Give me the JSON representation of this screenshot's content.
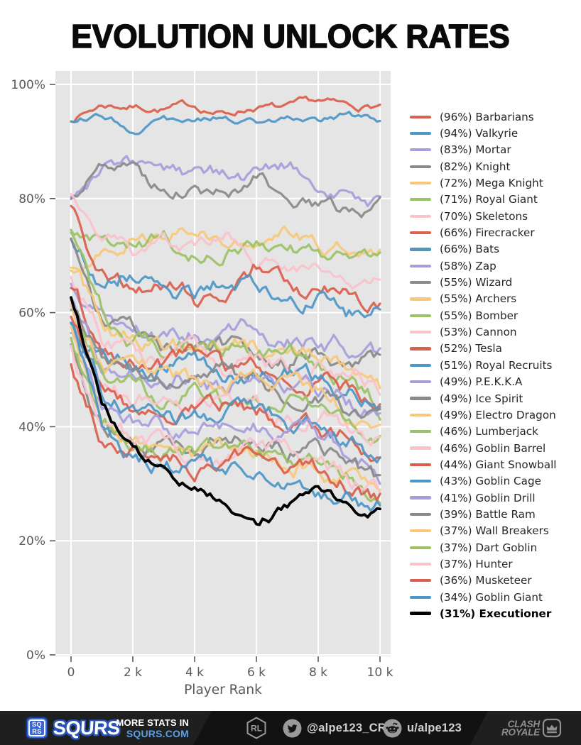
{
  "title": "EVOLUTION UNLOCK RATES",
  "chart_data": {
    "type": "line",
    "title": "EVOLUTION UNLOCK RATES",
    "xlabel": "Player Rank",
    "ylabel": "",
    "x_tick_labels": [
      "0",
      "2 k",
      "4 k",
      "6 k",
      "8 k",
      "10 k"
    ],
    "x_tick_values": [
      0,
      2000,
      4000,
      6000,
      8000,
      10000
    ],
    "y_tick_labels": [
      "0%",
      "20%",
      "40%",
      "60%",
      "80%",
      "100%"
    ],
    "y_tick_values": [
      0,
      20,
      40,
      60,
      80,
      100
    ],
    "xlim": [
      0,
      10000
    ],
    "ylim": [
      0,
      100
    ],
    "grid": "on",
    "plot_bg": "#e5e5e5",
    "grid_color": "#ffffff",
    "tick_color": "#595959",
    "legend_position": "right",
    "legend_format": "({pct}%) {name}",
    "palette": {
      "red": "#dc5f4e",
      "blue": "#4d97c7",
      "purple": "#a69edb",
      "gray": "#8a8a8a",
      "yellow": "#f8c878",
      "green": "#9cc266",
      "pink": "#fac3cc",
      "black": "#000000"
    },
    "x_control_points": [
      0,
      1000,
      2000,
      3000,
      4000,
      5000,
      6000,
      7000,
      8000,
      9000,
      10000
    ],
    "series": [
      {
        "name": "Barbarians",
        "pct": 96,
        "color": "red",
        "values": [
          94,
          96.5,
          96.3,
          95.8,
          96.2,
          94.8,
          96.3,
          95.6,
          96.6,
          95.8,
          96.2
        ]
      },
      {
        "name": "Valkyrie",
        "pct": 94,
        "color": "blue",
        "values": [
          94,
          94.8,
          92.3,
          94.2,
          93.2,
          94.6,
          93.4,
          94.4,
          93.1,
          94.3,
          94.0
        ]
      },
      {
        "name": "Mortar",
        "pct": 83,
        "color": "purple",
        "values": [
          80.5,
          84,
          86,
          83.8,
          83.5,
          84,
          83.8,
          85.5,
          83,
          80.5,
          79.5
        ]
      },
      {
        "name": "Knight",
        "pct": 82,
        "color": "gray",
        "values": [
          80,
          85,
          83.5,
          80.5,
          83,
          81,
          83.5,
          80.5,
          78.5,
          78,
          79
        ]
      },
      {
        "name": "Mega Knight",
        "pct": 72,
        "color": "yellow",
        "values": [
          68,
          72,
          74,
          73,
          75,
          72,
          73,
          75,
          71,
          72,
          70
        ]
      },
      {
        "name": "Royal Giant",
        "pct": 71,
        "color": "green",
        "values": [
          74,
          72,
          71,
          72.5,
          70,
          71.5,
          72,
          71,
          70,
          69,
          68
        ]
      },
      {
        "name": "Skeletons",
        "pct": 70,
        "color": "pink",
        "values": [
          80,
          74,
          71,
          72,
          70,
          73,
          69,
          68.5,
          67,
          66,
          65
        ]
      },
      {
        "name": "Firecracker",
        "pct": 66,
        "color": "red",
        "values": [
          78,
          67,
          65,
          66,
          63,
          65.5,
          68,
          66,
          64,
          63,
          62
        ]
      },
      {
        "name": "Bats",
        "pct": 66,
        "color": "blue",
        "values": [
          73,
          66,
          68,
          65,
          64,
          66,
          65,
          64,
          63,
          60,
          59.5
        ]
      },
      {
        "name": "Zap",
        "pct": 58,
        "color": "purple",
        "values": [
          65,
          58.5,
          57,
          56.5,
          57,
          55,
          57,
          56,
          55,
          54,
          52
        ]
      },
      {
        "name": "Wizard",
        "pct": 55,
        "color": "gray",
        "values": [
          72,
          58,
          56,
          54,
          55.5,
          53,
          54.5,
          52,
          53,
          50,
          50
        ]
      },
      {
        "name": "Archers",
        "pct": 55,
        "color": "yellow",
        "values": [
          69,
          57,
          55.5,
          54,
          53,
          55,
          54,
          53.5,
          52,
          50,
          45
        ]
      },
      {
        "name": "Bomber",
        "pct": 55,
        "color": "green",
        "values": [
          75,
          60,
          56,
          54,
          55,
          53.5,
          54,
          52,
          50,
          48,
          44
        ]
      },
      {
        "name": "Cannon",
        "pct": 53,
        "color": "pink",
        "values": [
          66,
          55,
          53,
          52,
          53,
          51,
          52,
          51,
          50,
          48,
          46
        ]
      },
      {
        "name": "Tesla",
        "pct": 52,
        "color": "red",
        "values": [
          64,
          54,
          52,
          51,
          52.5,
          50,
          51,
          50,
          49,
          47,
          45
        ]
      },
      {
        "name": "Royal Recruits",
        "pct": 51,
        "color": "blue",
        "values": [
          54,
          52,
          51,
          50.5,
          51,
          49,
          50,
          49.5,
          48,
          46,
          44
        ]
      },
      {
        "name": "P.E.K.K.A",
        "pct": 49,
        "color": "purple",
        "values": [
          62,
          52,
          49,
          48,
          49,
          47,
          48,
          47.5,
          46,
          44,
          42
        ]
      },
      {
        "name": "Ice Spirit",
        "pct": 49,
        "color": "gray",
        "values": [
          60,
          51,
          49,
          48,
          47,
          48.5,
          47,
          46,
          45,
          43,
          41
        ]
      },
      {
        "name": "Electro Dragon",
        "pct": 49,
        "color": "yellow",
        "values": [
          62,
          51,
          49,
          48.5,
          47,
          48,
          47,
          46,
          45,
          43,
          40
        ]
      },
      {
        "name": "Lumberjack",
        "pct": 46,
        "color": "green",
        "values": [
          60,
          49,
          46,
          45,
          46,
          44,
          45,
          44.5,
          43,
          41,
          38
        ]
      },
      {
        "name": "Goblin Barrel",
        "pct": 46,
        "color": "pink",
        "values": [
          62,
          49,
          46,
          45,
          44,
          45.5,
          44,
          43,
          42,
          40,
          38
        ]
      },
      {
        "name": "Giant Snowball",
        "pct": 44,
        "color": "red",
        "values": [
          60,
          47,
          44,
          43,
          42,
          43.5,
          42,
          41,
          40,
          38,
          36
        ]
      },
      {
        "name": "Goblin Cage",
        "pct": 43,
        "color": "blue",
        "values": [
          58,
          46,
          43,
          42,
          41,
          42,
          41.5,
          40,
          39,
          37,
          34
        ]
      },
      {
        "name": "Goblin Drill",
        "pct": 41,
        "color": "purple",
        "values": [
          56,
          44,
          41,
          40,
          39,
          40,
          39.5,
          38,
          37,
          35,
          32
        ]
      },
      {
        "name": "Battle Ram",
        "pct": 39,
        "color": "gray",
        "values": [
          55,
          42,
          39,
          38,
          37,
          38,
          37.5,
          36,
          35,
          33,
          30
        ]
      },
      {
        "name": "Wall Breakers",
        "pct": 37,
        "color": "yellow",
        "values": [
          58,
          41,
          37,
          36,
          35,
          36,
          35.5,
          34,
          33,
          31,
          28
        ]
      },
      {
        "name": "Dart Goblin",
        "pct": 37,
        "color": "green",
        "values": [
          55,
          40,
          37,
          36,
          35,
          36.5,
          35,
          34,
          33,
          31,
          28
        ]
      },
      {
        "name": "Hunter",
        "pct": 37,
        "color": "pink",
        "values": [
          54,
          40,
          37,
          36.5,
          35,
          36,
          35,
          34.5,
          33,
          31,
          29
        ]
      },
      {
        "name": "Musketeer",
        "pct": 36,
        "color": "red",
        "values": [
          52,
          39,
          36,
          35,
          34,
          35,
          34.5,
          33,
          32,
          30,
          28
        ]
      },
      {
        "name": "Goblin Giant",
        "pct": 34,
        "color": "blue",
        "values": [
          58,
          42,
          36,
          33,
          32,
          31,
          32,
          31,
          30,
          28,
          26
        ]
      },
      {
        "name": "Executioner",
        "pct": 31,
        "color": "black",
        "bold": true,
        "values": [
          62,
          44,
          36,
          32,
          30,
          26.5,
          24,
          26,
          28.5,
          25.5,
          24.5
        ]
      }
    ]
  },
  "footer": {
    "brand": {
      "icon_top": "SQ",
      "icon_bottom": "RS",
      "wordmark": "SQURS",
      "more_stats_line1": "MORE STATS IN",
      "more_stats_line2": "SQURS.COM",
      "accent_blue": "#5d9fe3"
    },
    "twitter_handle": "@alpe123_CR",
    "reddit_handle": "u/alpe123",
    "clash_logo_line1": "CLASH",
    "clash_logo_line2": "ROYALE"
  }
}
